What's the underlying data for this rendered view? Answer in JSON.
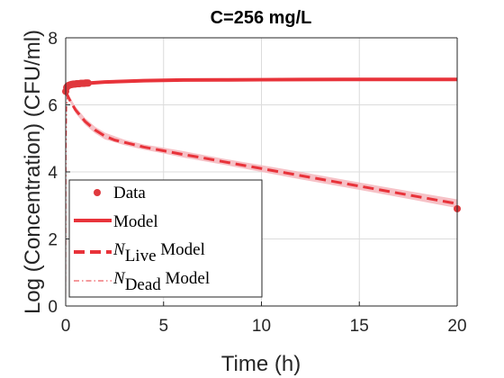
{
  "chart_data": {
    "type": "line",
    "title": "C=256 mg/L",
    "xlabel": "Time (h)",
    "ylabel": "Log (Concentration) (CFU/ml)",
    "xlim": [
      0,
      20
    ],
    "ylim": [
      0,
      8
    ],
    "xticks": [
      0,
      5,
      10,
      15,
      20
    ],
    "yticks": [
      0,
      2,
      4,
      6,
      8
    ],
    "grid": true,
    "legend_position": "bottom-left",
    "colors": {
      "main": "#e8333a",
      "band": "#f4b6bc",
      "data": "#e0393e"
    },
    "legend": [
      {
        "label": "Data",
        "style": "marker"
      },
      {
        "label": "Model",
        "style": "solid"
      },
      {
        "label_main": "N",
        "label_sub": "Live",
        "label_rest": " Model",
        "style": "dashed"
      },
      {
        "label_main": "N",
        "label_sub": "Dead",
        "label_rest": " Model",
        "style": "dashdot"
      }
    ],
    "series": [
      {
        "name": "Model",
        "style": "solid",
        "x": [
          0,
          0.1,
          0.2,
          0.3,
          0.5,
          0.75,
          1,
          1.5,
          2,
          3,
          4,
          5,
          6,
          8,
          10,
          12,
          15,
          18,
          20
        ],
        "y": [
          6.4,
          6.53,
          6.58,
          6.6,
          6.62,
          6.63,
          6.64,
          6.66,
          6.68,
          6.7,
          6.72,
          6.73,
          6.74,
          6.745,
          6.75,
          6.755,
          6.76,
          6.76,
          6.76
        ]
      },
      {
        "name": "N_Live Model",
        "style": "dashed",
        "x": [
          0,
          0.2,
          0.5,
          1,
          1.5,
          2,
          2.5,
          3,
          4,
          5,
          6,
          7,
          8,
          10,
          12,
          14,
          16,
          18,
          20
        ],
        "y": [
          6.4,
          6.15,
          5.85,
          5.5,
          5.25,
          5.07,
          4.95,
          4.88,
          4.74,
          4.63,
          4.52,
          4.42,
          4.31,
          4.1,
          3.89,
          3.68,
          3.47,
          3.26,
          3.05
        ]
      },
      {
        "name": "N_Dead Model",
        "style": "dashdot",
        "x": [
          0,
          0.02,
          0.05,
          0.1
        ],
        "y": [
          0,
          4.5,
          6.0,
          6.4
        ]
      }
    ],
    "band": {
      "x": [
        0,
        0.5,
        1,
        1.5,
        2,
        3,
        4,
        5,
        6,
        8,
        10,
        12,
        14,
        16,
        18,
        20
      ],
      "upper": [
        6.45,
        5.95,
        5.6,
        5.35,
        5.17,
        4.96,
        4.82,
        4.72,
        4.62,
        4.4,
        4.2,
        4.0,
        3.79,
        3.58,
        3.38,
        3.18
      ],
      "lower": [
        6.35,
        5.75,
        5.4,
        5.15,
        4.97,
        4.8,
        4.66,
        4.55,
        4.43,
        4.22,
        4.0,
        3.78,
        3.57,
        3.36,
        3.14,
        2.92
      ]
    },
    "data_points": {
      "name": "Data",
      "x": [
        0,
        0.05,
        0.1,
        0.15,
        0.2,
        0.25,
        0.3,
        0.35,
        0.4,
        0.45,
        0.5,
        0.55,
        0.6,
        0.65,
        0.7,
        0.75,
        0.8,
        0.85,
        0.9,
        0.95,
        1.0,
        1.05,
        1.1,
        1.15,
        20
      ],
      "y": [
        6.4,
        6.52,
        6.56,
        6.58,
        6.59,
        6.6,
        6.61,
        6.61,
        6.62,
        6.62,
        6.62,
        6.63,
        6.63,
        6.63,
        6.63,
        6.64,
        6.64,
        6.64,
        6.64,
        6.64,
        6.65,
        6.65,
        6.65,
        6.65,
        2.9
      ]
    }
  }
}
